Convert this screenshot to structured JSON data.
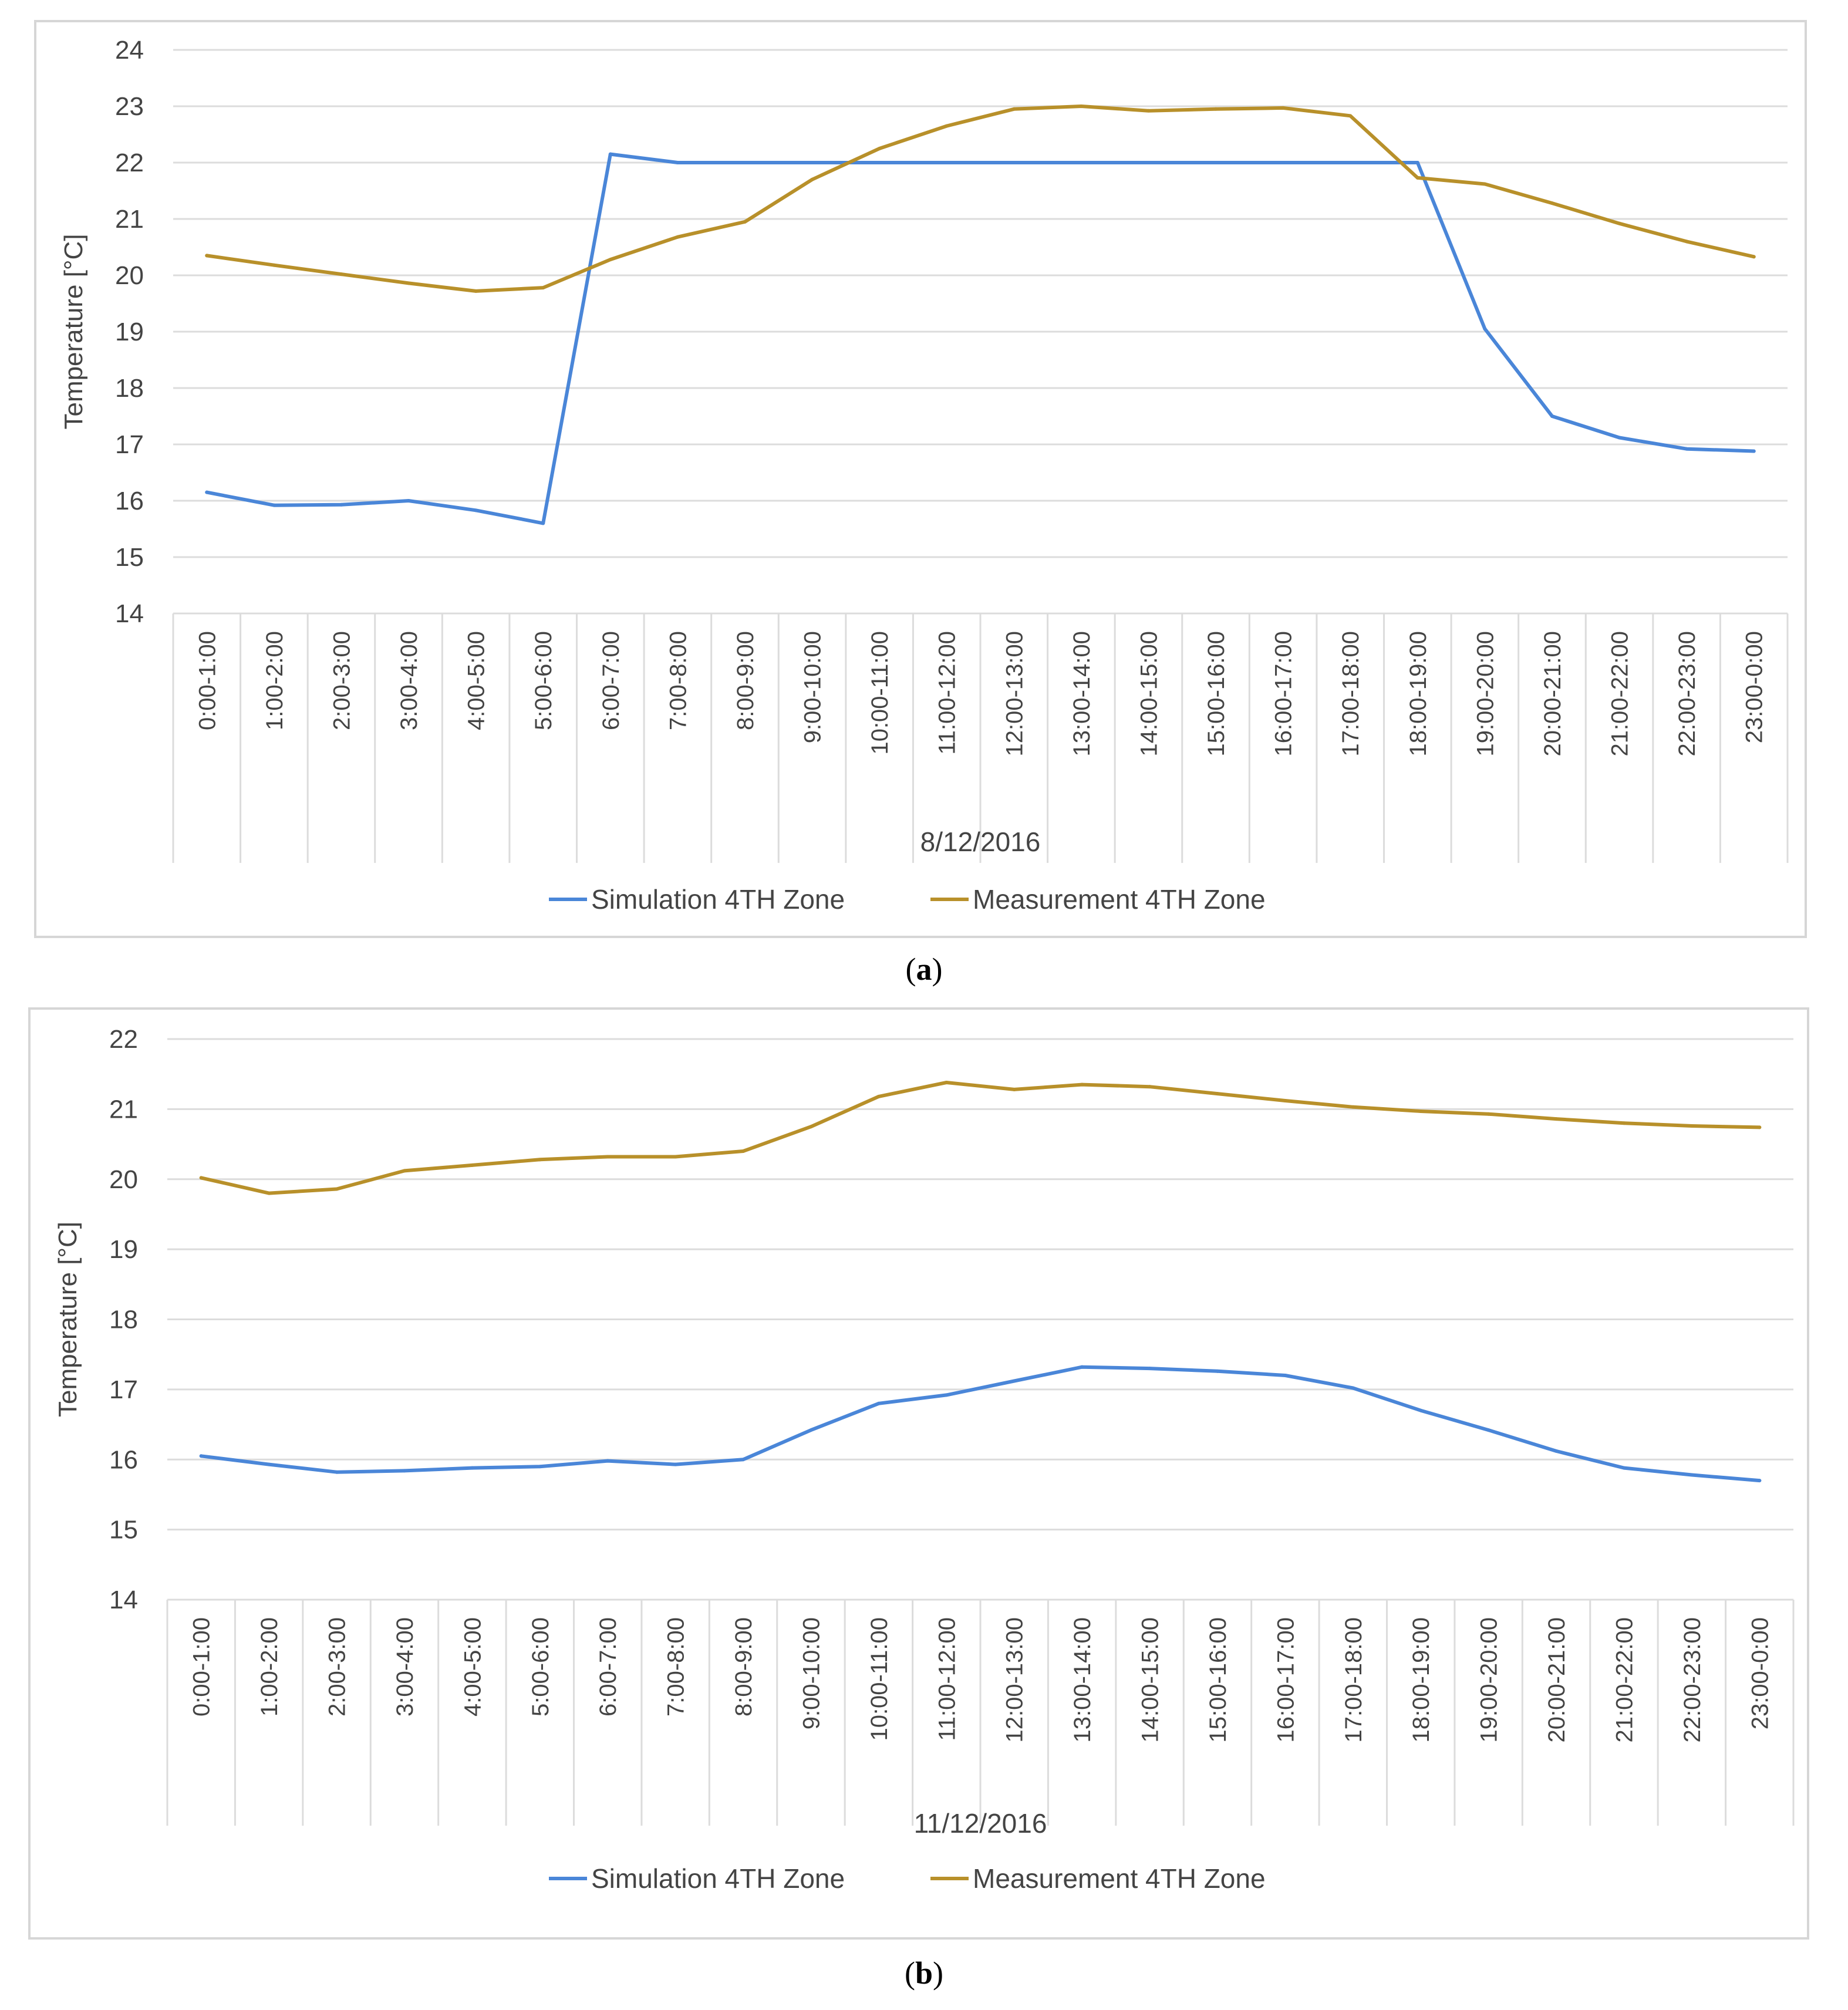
{
  "figures": [
    {
      "caption_open": "(",
      "caption_letter": "a",
      "caption_close": ")",
      "chart_data": {
        "type": "line",
        "title": "",
        "xlabel": "8/12/2016",
        "ylabel": "Temperature [°C]",
        "ylim": [
          14,
          24
        ],
        "yticks": [
          14,
          15,
          16,
          17,
          18,
          19,
          20,
          21,
          22,
          23,
          24
        ],
        "grid": true,
        "legend_position": "bottom",
        "categories": [
          "0:00-1:00",
          "1:00-2:00",
          "2:00-3:00",
          "3:00-4:00",
          "4:00-5:00",
          "5:00-6:00",
          "6:00-7:00",
          "7:00-8:00",
          "8:00-9:00",
          "9:00-10:00",
          "10:00-11:00",
          "11:00-12:00",
          "12:00-13:00",
          "13:00-14:00",
          "14:00-15:00",
          "15:00-16:00",
          "16:00-17:00",
          "17:00-18:00",
          "18:00-19:00",
          "19:00-20:00",
          "20:00-21:00",
          "21:00-22:00",
          "22:00-23:00",
          "23:00-0:00"
        ],
        "series": [
          {
            "name": "Simulation 4TH Zone",
            "color": "#4a86d8",
            "values": [
              16.15,
              15.92,
              15.93,
              16.0,
              15.83,
              15.6,
              22.15,
              22.0,
              22.0,
              22.0,
              22.0,
              22.0,
              22.0,
              22.0,
              22.0,
              22.0,
              22.0,
              22.0,
              22.0,
              19.05,
              17.5,
              17.12,
              16.92,
              16.88
            ]
          },
          {
            "name": "Measurement 4TH Zone",
            "color": "#b8902a",
            "values": [
              20.35,
              20.18,
              20.02,
              19.86,
              19.72,
              19.78,
              20.28,
              20.68,
              20.95,
              21.7,
              22.25,
              22.65,
              22.95,
              23.0,
              22.92,
              22.95,
              22.97,
              22.83,
              21.73,
              21.62,
              21.28,
              20.92,
              20.6,
              20.33
            ]
          }
        ]
      }
    },
    {
      "caption_open": "(",
      "caption_letter": "b",
      "caption_close": ")",
      "chart_data": {
        "type": "line",
        "title": "",
        "xlabel": "11/12/2016",
        "ylabel": "Temperature [°C]",
        "ylim": [
          14,
          22
        ],
        "yticks": [
          14,
          15,
          16,
          17,
          18,
          19,
          20,
          21,
          22
        ],
        "grid": true,
        "legend_position": "bottom",
        "categories": [
          "0:00-1:00",
          "1:00-2:00",
          "2:00-3:00",
          "3:00-4:00",
          "4:00-5:00",
          "5:00-6:00",
          "6:00-7:00",
          "7:00-8:00",
          "8:00-9:00",
          "9:00-10:00",
          "10:00-11:00",
          "11:00-12:00",
          "12:00-13:00",
          "13:00-14:00",
          "14:00-15:00",
          "15:00-16:00",
          "16:00-17:00",
          "17:00-18:00",
          "18:00-19:00",
          "19:00-20:00",
          "20:00-21:00",
          "21:00-22:00",
          "22:00-23:00",
          "23:00-0:00"
        ],
        "series": [
          {
            "name": "Simulation 4TH Zone",
            "color": "#4a86d8",
            "values": [
              16.05,
              15.93,
              15.82,
              15.84,
              15.88,
              15.9,
              15.98,
              15.93,
              16.0,
              16.42,
              16.8,
              16.92,
              17.12,
              17.32,
              17.3,
              17.26,
              17.2,
              17.02,
              16.7,
              16.42,
              16.12,
              15.88,
              15.78,
              15.7
            ]
          },
          {
            "name": "Measurement 4TH Zone",
            "color": "#b8902a",
            "values": [
              20.02,
              19.8,
              19.86,
              20.12,
              20.2,
              20.28,
              20.32,
              20.32,
              20.4,
              20.75,
              21.18,
              21.38,
              21.28,
              21.35,
              21.32,
              21.22,
              21.12,
              21.03,
              20.97,
              20.93,
              20.86,
              20.8,
              20.76,
              20.74
            ]
          }
        ]
      }
    }
  ]
}
